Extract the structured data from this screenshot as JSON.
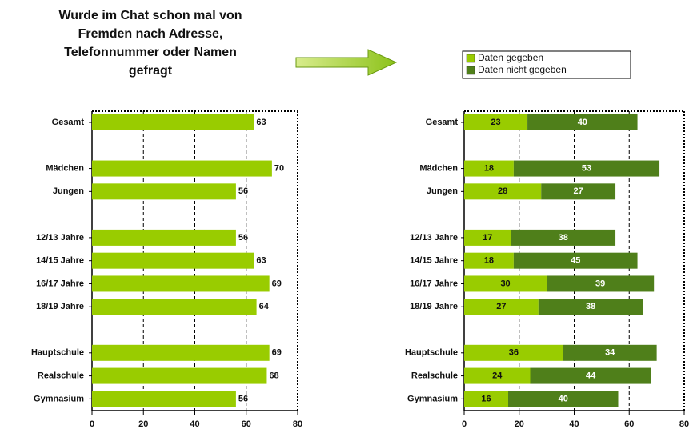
{
  "title": [
    "Wurde im Chat schon mal von",
    "Fremden nach Adresse,",
    "Telefonnummer oder Namen",
    "gefragt"
  ],
  "chart_data": [
    {
      "type": "bar",
      "categories": [
        "Gesamt",
        null,
        "Mädchen",
        "Jungen",
        null,
        "12/13 Jahre",
        "14/15 Jahre",
        "16/17 Jahre",
        "18/19 Jahre",
        null,
        "Hauptschule",
        "Realschule",
        "Gymnasium"
      ],
      "values": [
        63,
        null,
        70,
        56,
        null,
        56,
        63,
        69,
        64,
        null,
        69,
        68,
        56
      ],
      "color": "#99cc00",
      "xlim": [
        0,
        80
      ],
      "xticks": [
        0,
        20,
        40,
        60,
        80
      ],
      "grid": true
    },
    {
      "type": "stacked_bar",
      "categories": [
        "Gesamt",
        null,
        "Mädchen",
        "Jungen",
        null,
        "12/13 Jahre",
        "14/15 Jahre",
        "16/17 Jahre",
        "18/19 Jahre",
        null,
        "Hauptschule",
        "Realschule",
        "Gymnasium"
      ],
      "series": [
        {
          "name": "Daten gegeben",
          "color": "#99cc00",
          "values": [
            23,
            null,
            18,
            28,
            null,
            17,
            18,
            30,
            27,
            null,
            36,
            24,
            16
          ]
        },
        {
          "name": "Daten nicht gegeben",
          "color": "#4f7f1a",
          "values": [
            40,
            null,
            53,
            27,
            null,
            38,
            45,
            39,
            38,
            null,
            34,
            44,
            40
          ]
        }
      ],
      "xlim": [
        0,
        80
      ],
      "xticks": [
        0,
        20,
        40,
        60,
        80
      ],
      "grid": true,
      "legend": "top"
    }
  ]
}
